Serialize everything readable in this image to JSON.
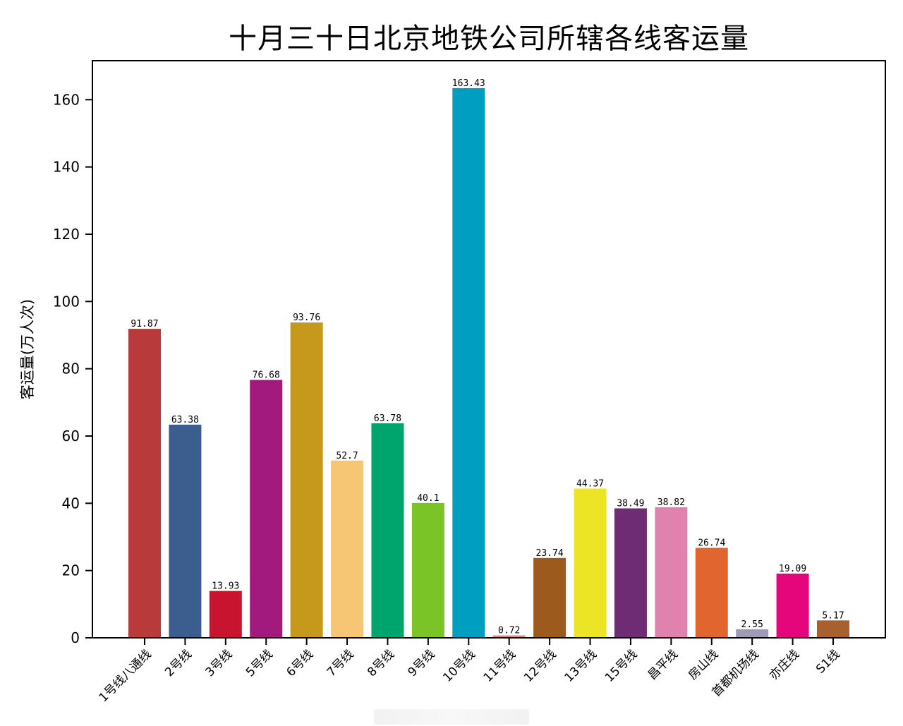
{
  "title": "十月三十日北京地铁公司所辖各线客运量",
  "chart_data": {
    "type": "bar",
    "title": "十月三十日北京地铁公司所辖各线客运量",
    "xlabel": "",
    "ylabel": "客运量(万人次)",
    "ylim": [
      0,
      171.6
    ],
    "yticks": [
      0,
      20,
      40,
      60,
      80,
      100,
      120,
      140,
      160
    ],
    "grid": false,
    "legend": null,
    "categories": [
      "1号线八通线",
      "2号线",
      "3号线",
      "5号线",
      "6号线",
      "7号线",
      "8号线",
      "9号线",
      "10号线",
      "11号线",
      "12号线",
      "13号线",
      "15号线",
      "昌平线",
      "房山线",
      "首都机场线",
      "亦庄线",
      "S1线"
    ],
    "values": [
      91.87,
      63.38,
      13.93,
      76.68,
      93.76,
      52.7,
      63.78,
      40.1,
      163.43,
      0.72,
      23.74,
      44.37,
      38.49,
      38.82,
      26.74,
      2.55,
      19.09,
      5.17
    ],
    "value_labels": [
      "91.87",
      "63.38",
      "13.93",
      "76.68",
      "93.76",
      "52.7",
      "63.78",
      "40.1",
      "163.43",
      "0.72",
      "23.74",
      "44.37",
      "38.49",
      "38.82",
      "26.74",
      "2.55",
      "19.09",
      "5.17"
    ],
    "colors": [
      "#B83A3A",
      "#3C5E8F",
      "#C8142E",
      "#A31A7E",
      "#C6991C",
      "#F7C675",
      "#00A46D",
      "#7AC427",
      "#009FC1",
      "#D98880",
      "#9C5A1C",
      "#ECE525",
      "#6E2C74",
      "#DF83AE",
      "#E0652F",
      "#A19AB5",
      "#E4067A",
      "#A8602F"
    ],
    "tick_label_rotation": 45
  }
}
